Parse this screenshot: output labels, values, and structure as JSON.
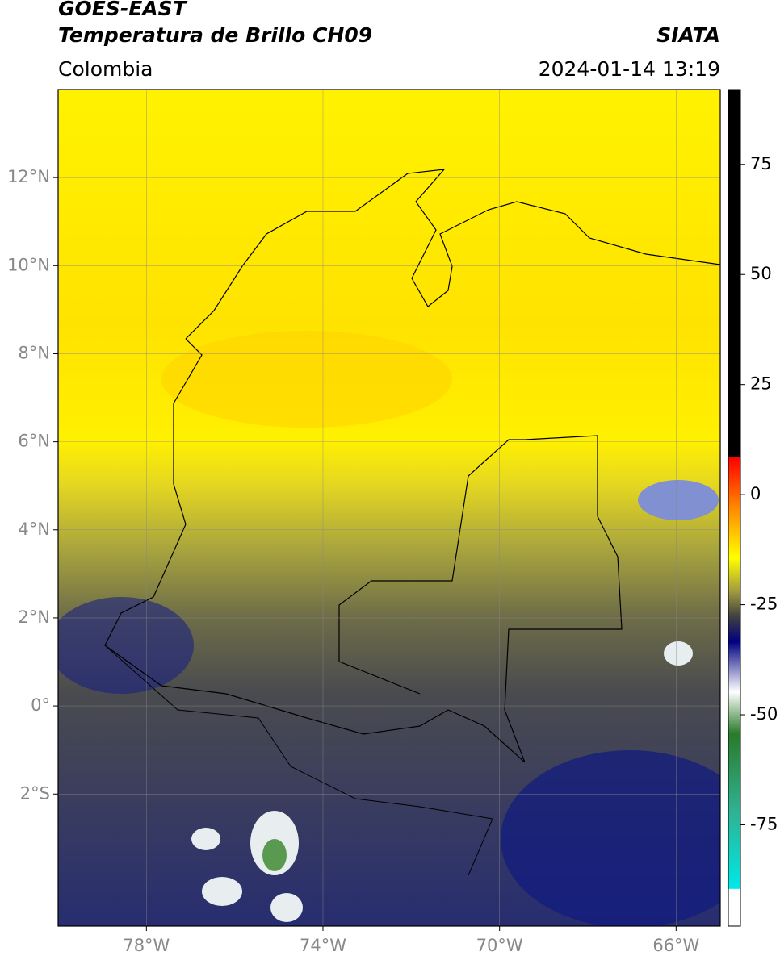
{
  "header": {
    "title": "GOES-EAST",
    "subtitle": "Temperatura de Brillo CH09",
    "source": "SIATA",
    "region": "Colombia",
    "datetime": "2024-01-14 13:19"
  },
  "map": {
    "xlim": [
      -80,
      -65
    ],
    "ylim": [
      -5,
      14
    ],
    "xticks": [
      {
        "value": -78,
        "label": "78°W"
      },
      {
        "value": -74,
        "label": "74°W"
      },
      {
        "value": -70,
        "label": "70°W"
      },
      {
        "value": -66,
        "label": "66°W"
      }
    ],
    "yticks": [
      {
        "value": 12,
        "label": "12°N"
      },
      {
        "value": 10,
        "label": "10°N"
      },
      {
        "value": 8,
        "label": "8°N"
      },
      {
        "value": 6,
        "label": "6°N"
      },
      {
        "value": 4,
        "label": "4°N"
      },
      {
        "value": 2,
        "label": "2°N"
      },
      {
        "value": 0,
        "label": "0°"
      },
      {
        "value": -2,
        "label": "2°S"
      }
    ],
    "grid": true
  },
  "colorbar": {
    "lim": [
      -98,
      92
    ],
    "ticks": [
      75,
      50,
      25,
      0,
      -25,
      -50,
      -75
    ]
  }
}
